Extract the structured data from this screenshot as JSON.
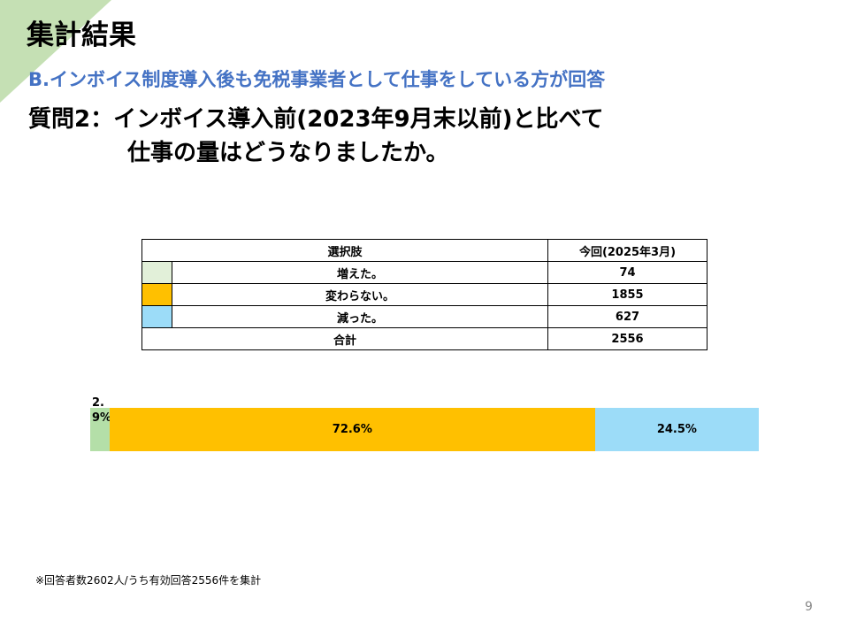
{
  "header": {
    "title": "集計結果",
    "subtitle": "B.インボイス制度導入後も免税事業者として仕事をしている方が回答",
    "question_line1": "質問2：インボイス導入前(2023年9月末以前)と比べて",
    "question_line2": "仕事の量はどうなりましたか。"
  },
  "table": {
    "headers": [
      "選択肢",
      "今回(2025年3月)"
    ],
    "rows": [
      {
        "label": "増えた。",
        "value": "74",
        "color": "#e2f0d9"
      },
      {
        "label": "変わらない。",
        "value": "1855",
        "color": "#ffc000"
      },
      {
        "label": "減った。",
        "value": "627",
        "color": "#9cdcf8"
      }
    ],
    "total": {
      "label": "合計",
      "value": "2556"
    }
  },
  "chart_data": {
    "type": "bar",
    "stacked": true,
    "orientation": "horizontal",
    "categories": [
      "増えた。",
      "変わらない。",
      "減った。"
    ],
    "values": [
      2.9,
      72.6,
      24.5
    ],
    "labels": [
      "2.9%",
      "72.6%",
      "24.5%"
    ],
    "colors": [
      "#b4dfa8",
      "#ffc000",
      "#9cdcf8"
    ],
    "xlim": [
      0,
      100
    ]
  },
  "footer": {
    "note": "※回答者数2602人/うち有効回答2556件を集計",
    "page": "9"
  }
}
